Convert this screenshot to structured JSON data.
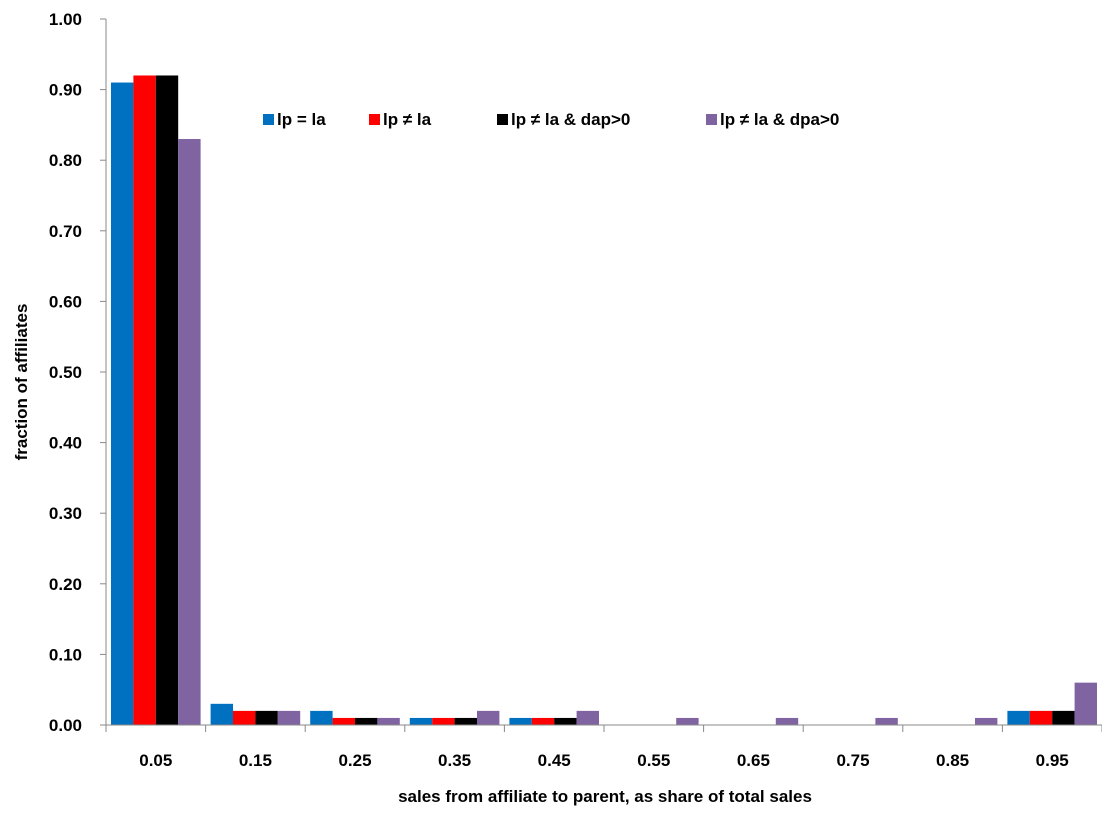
{
  "chart_data": {
    "type": "bar",
    "title": "",
    "xlabel": "sales from affiliate to parent, as share of total sales",
    "ylabel": "fraction of affiliates",
    "ylim": [
      0,
      1.0
    ],
    "y_ticks": [
      "0.00",
      "0.10",
      "0.20",
      "0.30",
      "0.40",
      "0.50",
      "0.60",
      "0.70",
      "0.80",
      "0.90",
      "1.00"
    ],
    "categories": [
      "0.05",
      "0.15",
      "0.25",
      "0.35",
      "0.45",
      "0.55",
      "0.65",
      "0.75",
      "0.85",
      "0.95"
    ],
    "grid": false,
    "legend_position": "top",
    "series": [
      {
        "name": "lp = la",
        "color": "#0070C0",
        "values": [
          0.91,
          0.03,
          0.02,
          0.01,
          0.01,
          0.0,
          0.0,
          0.0,
          0.0,
          0.02
        ]
      },
      {
        "name": "lp ≠ la",
        "color": "#FF0000",
        "values": [
          0.92,
          0.02,
          0.01,
          0.01,
          0.01,
          0.0,
          0.0,
          0.0,
          0.0,
          0.02
        ]
      },
      {
        "name": "lp ≠ la & dap>0",
        "color": "#000000",
        "values": [
          0.92,
          0.02,
          0.01,
          0.01,
          0.01,
          0.0,
          0.0,
          0.0,
          0.0,
          0.02
        ]
      },
      {
        "name": "lp ≠ la & dpa>0",
        "color": "#8064A2",
        "values": [
          0.83,
          0.02,
          0.01,
          0.02,
          0.02,
          0.01,
          0.01,
          0.01,
          0.01,
          0.06
        ]
      }
    ]
  }
}
